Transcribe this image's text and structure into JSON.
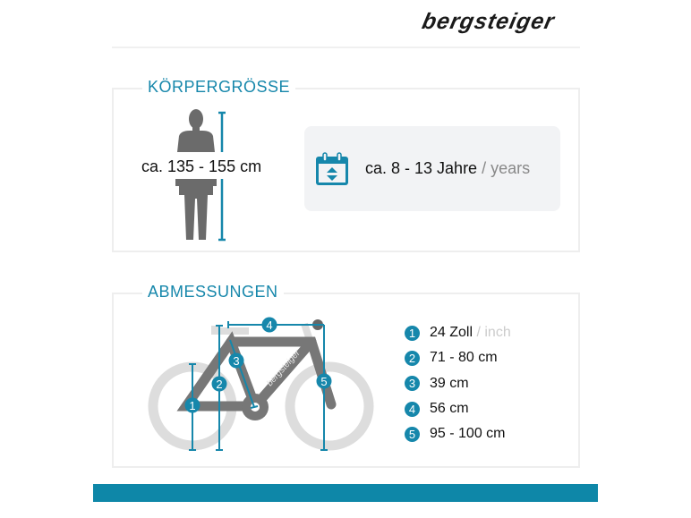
{
  "brand": {
    "logo_text": "bergsteiger"
  },
  "body_height": {
    "title": "KÖRPERGRÖSSE",
    "value": "ca. 135 - 155 cm",
    "age_value": "ca. 8 - 13 Jahre",
    "age_unit": "/ years",
    "icon": "calendar-icon"
  },
  "dimensions": {
    "title": "ABMESSUNGEN",
    "frame_label": "bergsteiger",
    "items": [
      {
        "number": "1",
        "value": "24 Zoll",
        "unit": "/ inch"
      },
      {
        "number": "2",
        "value": "71 - 80 cm"
      },
      {
        "number": "3",
        "value": "39 cm"
      },
      {
        "number": "4",
        "value": "56 cm"
      },
      {
        "number": "5",
        "value": "95 - 100 cm"
      }
    ]
  },
  "colors": {
    "accent": "#1687ab",
    "frame": "#777777",
    "wheel": "#dddddd",
    "bar": "#0e87a8"
  }
}
